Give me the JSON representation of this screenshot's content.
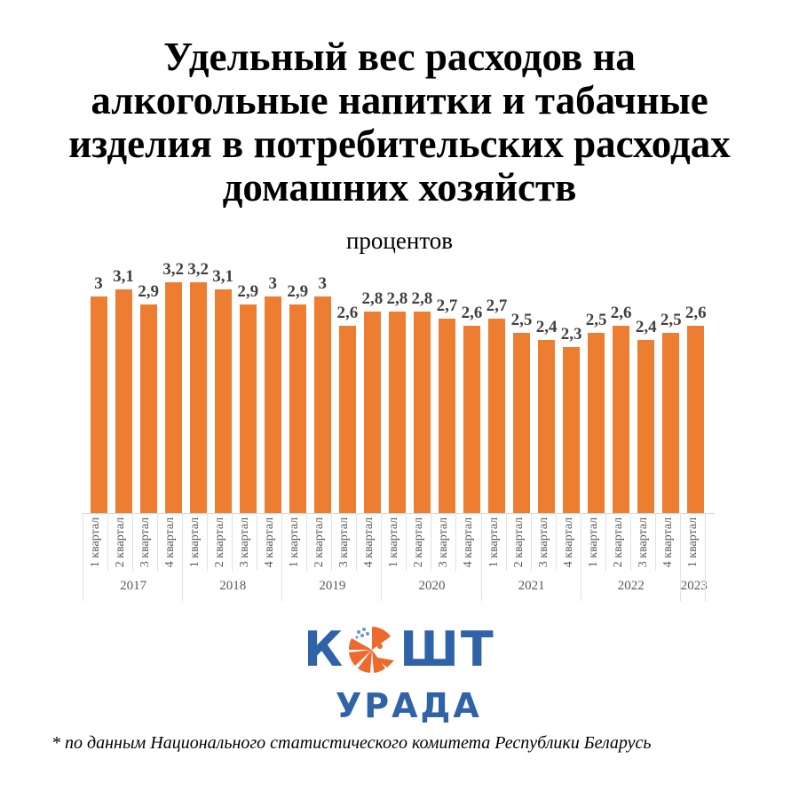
{
  "title": "Удельный вес расходов на алкогольные напитки и табачные изделия в потребительских расходах домашних хозяйств",
  "title_lines": [
    "Удельный вес расходов на",
    "алкогольные напитки и табачные",
    "изделия в потребительских расходах",
    "домашних хозяйств"
  ],
  "subtitle": "процентов",
  "bar_color": "#ed7d31",
  "logo": {
    "top": "КОШТ",
    "bottom": "УРАДА",
    "color": "#2f62a7",
    "accent": "#ed6a2c"
  },
  "footnote": "* по данным Национального статистического комитета Республики Беларусь",
  "chart_data": {
    "type": "bar",
    "title": "Удельный вес расходов на алкогольные напитки и табачные изделия в потребительских расходах домашних хозяйств",
    "subtitle": "процентов",
    "xlabel": "",
    "ylabel": "",
    "ylim": [
      0,
      3.4
    ],
    "grid": false,
    "legend": null,
    "categories": [
      "2017 1 квартал",
      "2017 2 квартал",
      "2017 3 квартал",
      "2017 4 квартал",
      "2018 1 квартал",
      "2018 2 квартал",
      "2018 3 квартал",
      "2018 4 квартал",
      "2019 1 квартал",
      "2019 2 квартал",
      "2019 3 квартал",
      "2019 4 квартал",
      "2020 1 квартал",
      "2020 2 квартал",
      "2020 3 квартал",
      "2020 4 квартал",
      "2021 1 квартал",
      "2021 2 квартал",
      "2021 3 квартал",
      "2021 4 квартал",
      "2022 1 квартал",
      "2022 2 квартал",
      "2022 3 квартал",
      "2022 4 квартал",
      "2023 1 квартал"
    ],
    "quarter_labels": [
      "1 квартал",
      "2 квартал",
      "3 квартал",
      "4 квартал",
      "1 квартал",
      "2 квартал",
      "3 квартал",
      "4 квартал",
      "1 квартал",
      "2 квартал",
      "3 квартал",
      "4 квартал",
      "1 квартал",
      "2 квартал",
      "3 квартал",
      "4 квартал",
      "1 квартал",
      "2 квартал",
      "3 квартал",
      "4 квартал",
      "1 квартал",
      "2 квартал",
      "3 квартал",
      "4 квартал",
      "1 квартал"
    ],
    "years": [
      {
        "label": "2017",
        "span": 4
      },
      {
        "label": "2018",
        "span": 4
      },
      {
        "label": "2019",
        "span": 4
      },
      {
        "label": "2020",
        "span": 4
      },
      {
        "label": "2021",
        "span": 4
      },
      {
        "label": "2022",
        "span": 4
      },
      {
        "label": "2023",
        "span": 1
      }
    ],
    "values": [
      3.0,
      3.1,
      2.9,
      3.2,
      3.2,
      3.1,
      2.9,
      3.0,
      2.9,
      3.0,
      2.6,
      2.8,
      2.8,
      2.8,
      2.7,
      2.6,
      2.7,
      2.5,
      2.4,
      2.3,
      2.5,
      2.6,
      2.4,
      2.5,
      2.6
    ],
    "value_labels": [
      "3",
      "3,1",
      "2,9",
      "3,2",
      "3,2",
      "3,1",
      "2,9",
      "3",
      "2,9",
      "3",
      "2,6",
      "2,8",
      "2,8",
      "2,8",
      "2,7",
      "2,6",
      "2,7",
      "2,5",
      "2,4",
      "2,3",
      "2,5",
      "2,6",
      "2,4",
      "2,5",
      "2,6"
    ]
  }
}
